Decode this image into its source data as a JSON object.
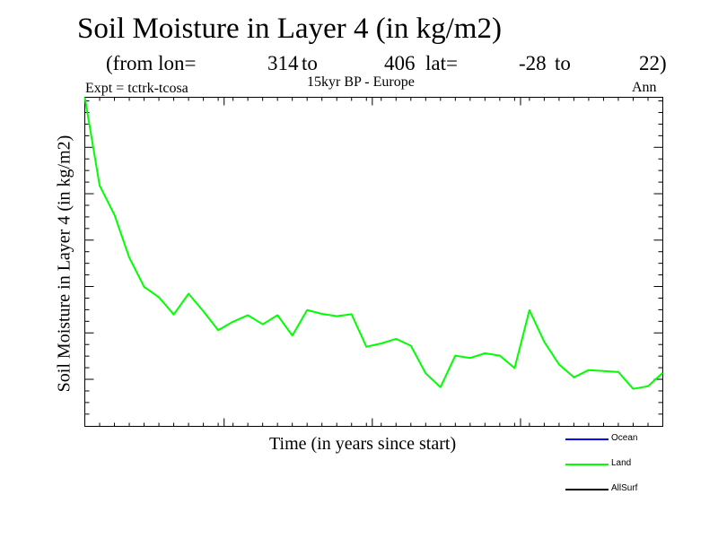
{
  "header": {
    "title": "Soil Moisture in Layer 4 (in kg/m2)",
    "from_lon_label": "(from lon=",
    "lon_start": "314",
    "to_label_1": "to",
    "lon_end": "406",
    "lat_label": "lat=",
    "lat_start": "-28",
    "to_label_2": "to",
    "lat_end": "22)",
    "expt": "Expt = tctrk-tcosa",
    "subtitle": "15kyr BP - Europe",
    "season": "Ann"
  },
  "colors": {
    "ocean": "#0000ff",
    "land": "#00ff00",
    "allsurf": "#000000"
  },
  "chart_data": {
    "type": "line",
    "title": "Soil Moisture in Layer 4 (in kg/m2)",
    "xlabel": "Time (in years since start)",
    "ylabel": "Soil Moisture in Layer 4 (in kg/m2)",
    "xlim": [
      0,
      39
    ],
    "ylim": [
      0,
      100
    ],
    "x_major_ticks": [
      9.4,
      19.4,
      29.4
    ],
    "y_major_ticks": [
      14.3,
      28.4,
      42.7,
      56.9,
      71.2,
      85.4
    ],
    "legend": [
      {
        "name": "Ocean",
        "color": "#0000ff"
      },
      {
        "name": "Land",
        "color": "#00ff00"
      },
      {
        "name": "AllSurf",
        "color": "#000000"
      }
    ],
    "series": [
      {
        "name": "Land",
        "color": "#00ff00",
        "x": [
          0,
          1,
          2,
          3,
          4,
          5,
          6,
          7,
          8,
          9,
          10,
          11,
          12,
          13,
          14,
          15,
          16,
          17,
          18,
          19,
          20,
          21,
          22,
          23,
          24,
          25,
          26,
          27,
          28,
          29,
          30,
          31,
          32,
          33,
          34,
          35,
          36,
          37,
          38,
          39
        ],
        "values": [
          100,
          73.2,
          64.3,
          51.3,
          42.4,
          39.2,
          34.0,
          40.3,
          35.0,
          29.2,
          31.8,
          33.8,
          31.0,
          33.8,
          27.6,
          35.3,
          34.2,
          33.5,
          34.1,
          24.2,
          25.2,
          26.6,
          24.5,
          16.1,
          11.9,
          21.5,
          20.8,
          22.2,
          21.5,
          17.7,
          35.3,
          25.7,
          18.8,
          14.9,
          17.1,
          16.8,
          16.5,
          11.4,
          12.2,
          16.3
        ]
      }
    ]
  }
}
